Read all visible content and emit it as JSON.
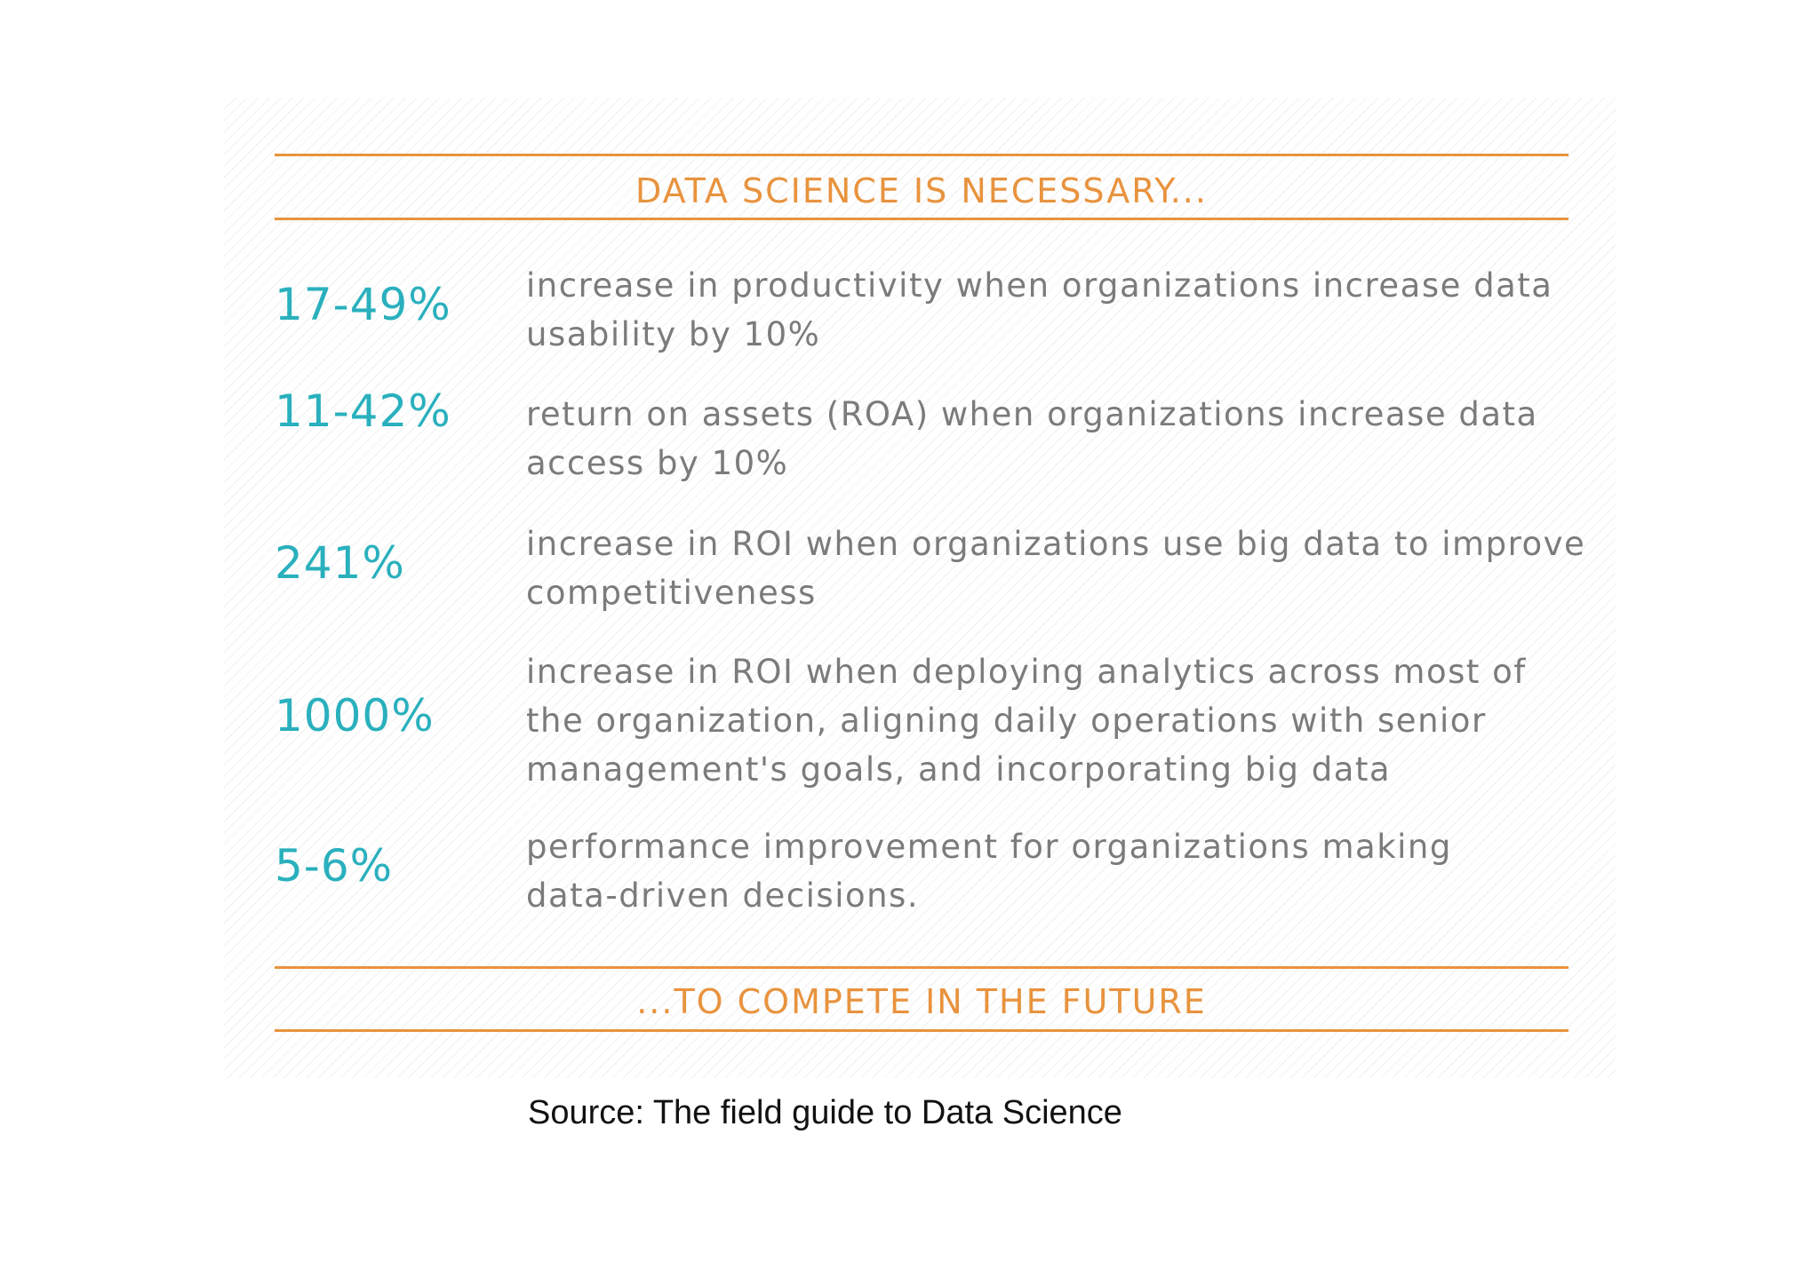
{
  "header": {
    "title": "DATA SCIENCE IS NECESSARY..."
  },
  "stats": [
    {
      "value": "17-49%",
      "description": "increase in productivity when organizations increase data usability by 10%"
    },
    {
      "value": "11-42%",
      "description": "return on assets (ROA) when organizations increase data access by 10%"
    },
    {
      "value": "241%",
      "description": "increase in ROI when organizations use big data to improve competitiveness"
    },
    {
      "value": "1000%",
      "description": "increase in ROI when deploying analytics across most of the organization, aligning daily operations with senior management's goals, and incorporating big data"
    },
    {
      "value": "5-6%",
      "description": "performance improvement for organizations making data-driven decisions."
    }
  ],
  "footer": {
    "title": "...TO COMPETE IN THE FUTURE"
  },
  "source": "Source: The field guide to Data Science",
  "colors": {
    "accent_orange": "#e8933e",
    "stat_teal": "#2ab0bd",
    "text_gray": "#7b7b7b"
  }
}
